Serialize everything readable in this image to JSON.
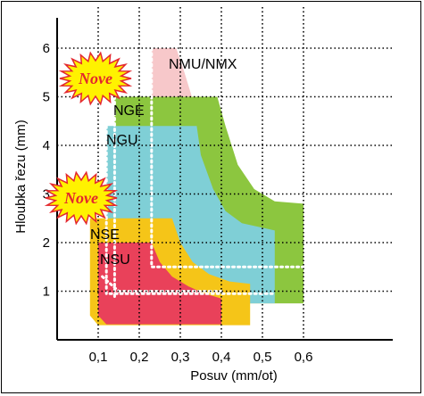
{
  "chart_data": {
    "type": "area",
    "xlabel": "Posuv (mm/ot)",
    "ylabel": "Hloubka řezu (mm)",
    "x_ticks": [
      "0,1",
      "0,2",
      "0,3",
      "0,4",
      "0,5",
      "0,6"
    ],
    "y_ticks": [
      "1",
      "2",
      "3",
      "4",
      "5",
      "6"
    ],
    "xlim": [
      0,
      0.7
    ],
    "ylim": [
      0,
      6.5
    ],
    "grid": true,
    "series": [
      {
        "name": "NMU/NMX",
        "color": "#f7c8ca",
        "points": [
          [
            0.23,
            6.0
          ],
          [
            0.29,
            6.0
          ],
          [
            0.31,
            5.5
          ],
          [
            0.35,
            4.4
          ],
          [
            0.4,
            3.6
          ],
          [
            0.45,
            3.1
          ],
          [
            0.5,
            2.8
          ],
          [
            0.6,
            2.5
          ],
          [
            0.6,
            0.75
          ],
          [
            0.23,
            0.75
          ]
        ]
      },
      {
        "name": "NGE",
        "color": "#8cc63f",
        "points": [
          [
            0.14,
            5.0
          ],
          [
            0.39,
            5.0
          ],
          [
            0.41,
            4.4
          ],
          [
            0.44,
            3.6
          ],
          [
            0.48,
            3.1
          ],
          [
            0.53,
            2.85
          ],
          [
            0.6,
            2.8
          ],
          [
            0.6,
            0.75
          ],
          [
            0.14,
            0.75
          ]
        ]
      },
      {
        "name": "NGU",
        "color": "#7fcfd6",
        "points": [
          [
            0.12,
            4.4
          ],
          [
            0.34,
            4.4
          ],
          [
            0.35,
            3.8
          ],
          [
            0.38,
            3.1
          ],
          [
            0.41,
            2.65
          ],
          [
            0.45,
            2.4
          ],
          [
            0.53,
            2.25
          ],
          [
            0.53,
            0.75
          ],
          [
            0.12,
            0.75
          ]
        ]
      },
      {
        "name": "NSE",
        "color": "#f5c518",
        "points": [
          [
            0.08,
            2.5
          ],
          [
            0.28,
            2.5
          ],
          [
            0.3,
            2.0
          ],
          [
            0.33,
            1.6
          ],
          [
            0.37,
            1.35
          ],
          [
            0.42,
            1.2
          ],
          [
            0.47,
            1.15
          ],
          [
            0.47,
            0.3
          ],
          [
            0.1,
            0.3
          ],
          [
            0.08,
            0.5
          ]
        ]
      },
      {
        "name": "NSU",
        "color": "#e9415a",
        "points": [
          [
            0.1,
            2.0
          ],
          [
            0.23,
            2.0
          ],
          [
            0.25,
            1.6
          ],
          [
            0.28,
            1.3
          ],
          [
            0.32,
            1.1
          ],
          [
            0.36,
            0.95
          ],
          [
            0.4,
            0.85
          ],
          [
            0.4,
            0.32
          ],
          [
            0.12,
            0.32
          ],
          [
            0.1,
            0.5
          ]
        ]
      }
    ],
    "annotations": [
      "Nove",
      "Nove"
    ]
  },
  "colors": {
    "burst_fill": "#fff200",
    "burst_stroke": "#e3262e",
    "grid_dots": "#000000",
    "white_dots": "#ffffff"
  }
}
